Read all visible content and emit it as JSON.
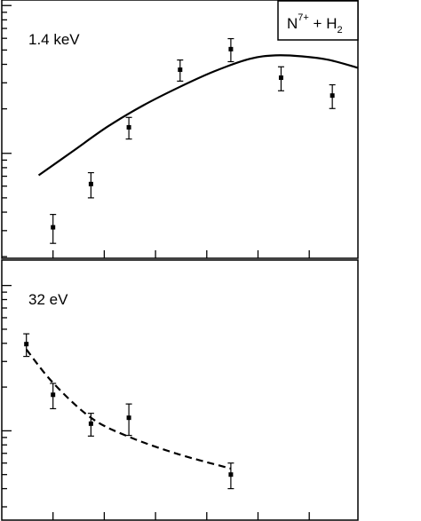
{
  "chart_data": [
    {
      "type": "scatter",
      "annotation": "1.4 keV",
      "legend_label": {
        "base": "N",
        "sup": "7+",
        "mid": " + H",
        "sub": "2"
      },
      "xlim": [
        0,
        6.95
      ],
      "xticks": [
        1,
        2,
        3,
        4,
        5,
        6
      ],
      "ylim": [
        0.195,
        10.9
      ],
      "log_y": true,
      "yticks": [
        0.2,
        0.3,
        0.4,
        0.5,
        0.6,
        0.7,
        0.8,
        0.9,
        1,
        2,
        3,
        4,
        5,
        6,
        7,
        8,
        9,
        10
      ],
      "major_yticks": [
        1,
        10
      ],
      "series": [
        {
          "kind": "points",
          "color": "#000000",
          "x": [
            1,
            1.74,
            2.48,
            3.48,
            4.47,
            5.45,
            6.45
          ],
          "values": [
            0.316,
            0.62,
            1.5,
            3.68,
            5.07,
            3.25,
            2.46
          ],
          "errors": [
            0.07,
            0.12,
            0.25,
            0.6,
            0.9,
            0.6,
            0.45
          ]
        },
        {
          "kind": "line",
          "style": "solid",
          "color": "#000000",
          "x": [
            0.72,
            1.38,
            2.07,
            2.76,
            3.45,
            4.14,
            4.83,
            5.34,
            5.86,
            6.38,
            6.95
          ],
          "values": [
            0.71,
            1.03,
            1.52,
            2.11,
            2.79,
            3.58,
            4.35,
            4.6,
            4.53,
            4.29,
            3.79
          ]
        }
      ]
    },
    {
      "type": "scatter",
      "annotation": "32 eV",
      "xlim": [
        0,
        6.95
      ],
      "xticks": [
        1,
        2,
        3,
        4,
        5,
        6
      ],
      "ylim": [
        0.243,
        14.96
      ],
      "log_y": true,
      "yticks": [
        0.3,
        0.4,
        0.5,
        0.6,
        0.7,
        0.8,
        0.9,
        1,
        2,
        3,
        4,
        5,
        6,
        7,
        8,
        9,
        10
      ],
      "major_yticks": [
        1,
        10
      ],
      "series": [
        {
          "kind": "points",
          "color": "#000000",
          "x": [
            0.48,
            1,
            1.74,
            2.48,
            4.47
          ],
          "values": [
            3.95,
            1.77,
            1.12,
            1.23,
            0.5
          ],
          "errors": [
            0.7,
            0.35,
            0.2,
            0.3,
            0.1
          ]
        },
        {
          "kind": "line",
          "style": "dashed",
          "color": "#000000",
          "x": [
            0.48,
            1,
            1.74,
            2.48,
            3.45,
            4.47
          ],
          "values": [
            3.63,
            2.14,
            1.23,
            0.91,
            0.69,
            0.55
          ]
        }
      ]
    }
  ]
}
